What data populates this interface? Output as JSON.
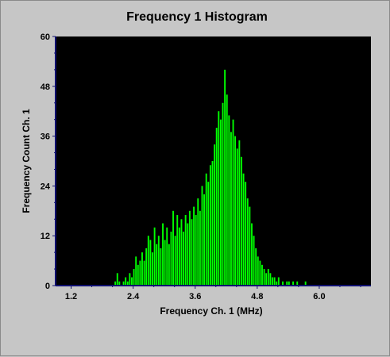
{
  "chart_data": {
    "type": "bar",
    "title": "Frequency 1 Histogram",
    "xlabel": "Frequency  Ch. 1 (MHz)",
    "ylabel": "Frequency Count Ch. 1",
    "xlim": [
      0.9,
      7.0
    ],
    "ylim": [
      0,
      60
    ],
    "x_ticks": [
      "1.2",
      "2.4",
      "3.6",
      "4.8",
      "6.0"
    ],
    "y_ticks": [
      "0",
      "12",
      "24",
      "36",
      "48",
      "60"
    ],
    "bin_width": 0.02,
    "bins": [
      [
        2.04,
        1
      ],
      [
        2.08,
        3
      ],
      [
        2.12,
        1
      ],
      [
        2.2,
        1
      ],
      [
        2.24,
        2
      ],
      [
        2.28,
        1
      ],
      [
        2.32,
        3
      ],
      [
        2.36,
        2
      ],
      [
        2.4,
        4
      ],
      [
        2.44,
        7
      ],
      [
        2.48,
        5
      ],
      [
        2.52,
        6
      ],
      [
        2.56,
        8
      ],
      [
        2.6,
        6
      ],
      [
        2.64,
        9
      ],
      [
        2.68,
        12
      ],
      [
        2.72,
        11
      ],
      [
        2.76,
        8
      ],
      [
        2.8,
        14
      ],
      [
        2.84,
        10
      ],
      [
        2.88,
        12
      ],
      [
        2.92,
        9
      ],
      [
        2.96,
        15
      ],
      [
        3.0,
        11
      ],
      [
        3.04,
        14
      ],
      [
        3.08,
        10
      ],
      [
        3.12,
        13
      ],
      [
        3.16,
        18
      ],
      [
        3.2,
        12
      ],
      [
        3.24,
        17
      ],
      [
        3.28,
        14
      ],
      [
        3.32,
        16
      ],
      [
        3.36,
        13
      ],
      [
        3.4,
        17
      ],
      [
        3.44,
        15
      ],
      [
        3.48,
        18
      ],
      [
        3.52,
        16
      ],
      [
        3.56,
        19
      ],
      [
        3.6,
        17
      ],
      [
        3.64,
        21
      ],
      [
        3.68,
        18
      ],
      [
        3.72,
        24
      ],
      [
        3.76,
        22
      ],
      [
        3.8,
        27
      ],
      [
        3.84,
        25
      ],
      [
        3.88,
        29
      ],
      [
        3.92,
        30
      ],
      [
        3.96,
        34
      ],
      [
        4.0,
        38
      ],
      [
        4.04,
        42
      ],
      [
        4.08,
        40
      ],
      [
        4.12,
        44
      ],
      [
        4.16,
        52
      ],
      [
        4.2,
        46
      ],
      [
        4.24,
        41
      ],
      [
        4.28,
        37
      ],
      [
        4.32,
        40
      ],
      [
        4.36,
        36
      ],
      [
        4.4,
        33
      ],
      [
        4.44,
        35
      ],
      [
        4.48,
        31
      ],
      [
        4.52,
        27
      ],
      [
        4.56,
        25
      ],
      [
        4.6,
        21
      ],
      [
        4.64,
        19
      ],
      [
        4.68,
        15
      ],
      [
        4.72,
        12
      ],
      [
        4.76,
        9
      ],
      [
        4.8,
        7
      ],
      [
        4.84,
        6
      ],
      [
        4.88,
        5
      ],
      [
        4.92,
        4
      ],
      [
        4.96,
        3
      ],
      [
        5.0,
        4
      ],
      [
        5.04,
        3
      ],
      [
        5.08,
        2
      ],
      [
        5.12,
        2
      ],
      [
        5.16,
        1
      ],
      [
        5.2,
        2
      ],
      [
        5.28,
        1
      ],
      [
        5.36,
        1
      ],
      [
        5.4,
        1
      ],
      [
        5.48,
        1
      ],
      [
        5.56,
        1
      ],
      [
        5.72,
        1
      ]
    ],
    "colors": {
      "bar": "#00ff00",
      "plot_bg": "#000000",
      "axis": "#101070",
      "panel_bg": "#c6c6c6"
    },
    "grid": false,
    "legend": "none"
  }
}
